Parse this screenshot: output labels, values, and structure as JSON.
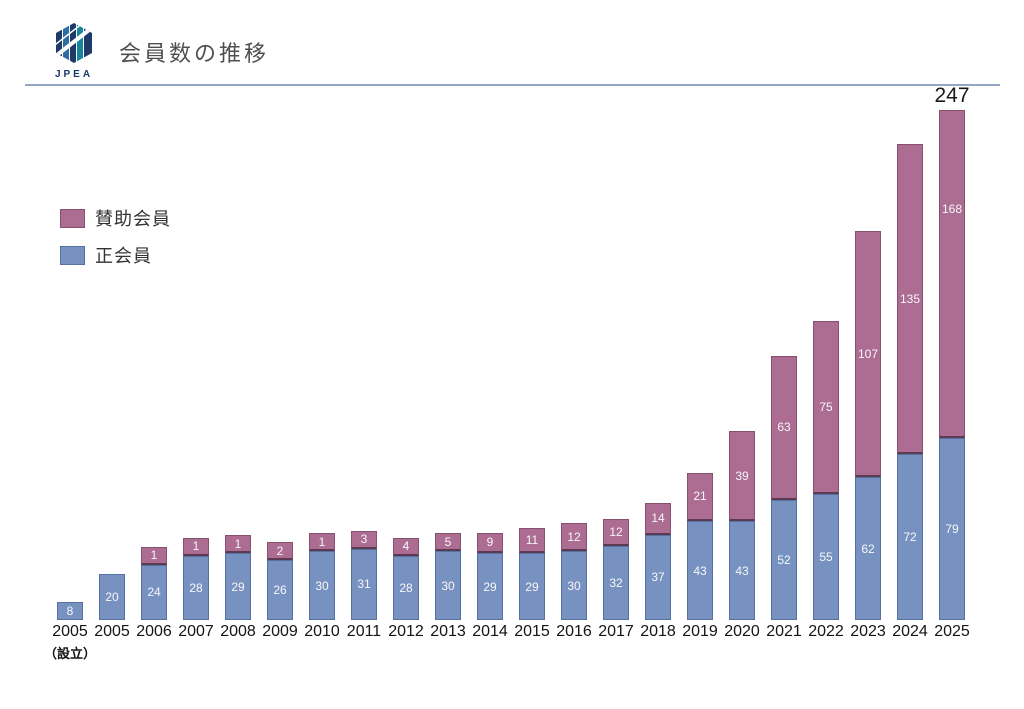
{
  "header": {
    "logo_text": "JPEA",
    "title": "会員数の推移"
  },
  "legend": [
    {
      "label": "賛助会員",
      "color": "#ad6c92"
    },
    {
      "label": "正会員",
      "color": "#7792c0"
    }
  ],
  "chart_data": {
    "type": "bar",
    "stacked": true,
    "title": "会員数の推移",
    "categories": [
      "2005",
      "2005",
      "2006",
      "2007",
      "2008",
      "2009",
      "2010",
      "2011",
      "2012",
      "2013",
      "2014",
      "2015",
      "2016",
      "2017",
      "2018",
      "2019",
      "2020",
      "2021",
      "2022",
      "2023",
      "2024",
      "2025"
    ],
    "category_note": {
      "index": 0,
      "text": "（設立）"
    },
    "series": [
      {
        "name": "正会員",
        "color": "#7792c0",
        "values": [
          8,
          20,
          24,
          28,
          29,
          26,
          30,
          31,
          28,
          30,
          29,
          29,
          30,
          32,
          37,
          43,
          43,
          52,
          55,
          62,
          72,
          79
        ]
      },
      {
        "name": "賛助会員",
        "color": "#ad6c92",
        "values": [
          0,
          0,
          1,
          1,
          1,
          2,
          1,
          3,
          4,
          5,
          9,
          11,
          12,
          12,
          14,
          21,
          39,
          63,
          75,
          107,
          135,
          168
        ]
      }
    ],
    "annotation": {
      "text": "247",
      "category_index": 21
    },
    "ylim": [
      0,
      247
    ],
    "grid": false,
    "axes_shown": false,
    "legend_position": "upper-left",
    "value_labels": "inside-white"
  }
}
